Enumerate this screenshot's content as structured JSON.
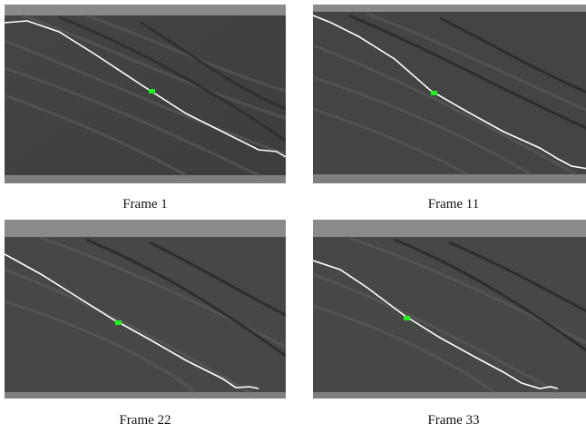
{
  "frames": [
    {
      "caption": "Frame 1"
    },
    {
      "caption": "Frame 11"
    },
    {
      "caption": "Frame 22"
    },
    {
      "caption": "Frame 33"
    }
  ],
  "colors": {
    "band": "#8a8a8a",
    "background": "#4a4a4a",
    "contour": "#ffffff",
    "marker": "#22ee22"
  }
}
